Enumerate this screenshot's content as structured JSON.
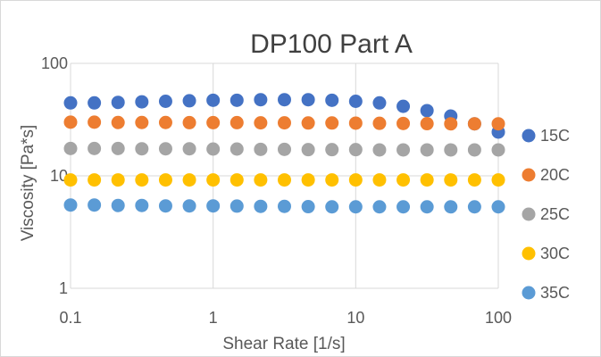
{
  "chart_data": {
    "type": "scatter",
    "title": "DP100 Part A",
    "xlabel": "Shear Rate [1/s]",
    "ylabel": "Viscosity [Pa*s]",
    "x_scale": "log",
    "y_scale": "log",
    "xlim": [
      0.1,
      100
    ],
    "ylim": [
      1,
      100
    ],
    "x_ticks": [
      "0.1",
      "1",
      "10",
      "100"
    ],
    "y_ticks": [
      "1",
      "10",
      "100"
    ],
    "grid": "major, both axes",
    "legend_position": "right",
    "x": [
      0.1,
      0.1468,
      0.2154,
      0.3162,
      0.4642,
      0.6813,
      1.0,
      1.468,
      2.154,
      3.162,
      4.642,
      6.813,
      10.0,
      14.68,
      21.54,
      31.62,
      46.42,
      68.13,
      100.0
    ],
    "series": [
      {
        "name": "15C",
        "color": "#4472c4",
        "values": [
          44.5,
          44.5,
          45,
          45.5,
          46,
          46.5,
          47,
          47,
          47.5,
          47.5,
          47.5,
          47,
          46,
          44.5,
          41.5,
          38,
          34,
          29,
          24.5
        ]
      },
      {
        "name": "20C",
        "color": "#ed7d31",
        "values": [
          30,
          30,
          29.8,
          29.8,
          29.8,
          29.7,
          29.7,
          29.7,
          29.6,
          29.6,
          29.5,
          29.5,
          29.4,
          29.3,
          29.2,
          29.1,
          29,
          29,
          29
        ]
      },
      {
        "name": "25C",
        "color": "#a5a5a5",
        "values": [
          17.5,
          17.5,
          17.5,
          17.4,
          17.4,
          17.4,
          17.3,
          17.3,
          17.2,
          17.2,
          17.1,
          17.1,
          17.1,
          17,
          17,
          17,
          17,
          17,
          17
        ]
      },
      {
        "name": "30C",
        "color": "#ffc000",
        "values": [
          9.2,
          9.2,
          9.2,
          9.2,
          9.2,
          9.2,
          9.2,
          9.2,
          9.2,
          9.2,
          9.2,
          9.2,
          9.2,
          9.2,
          9.2,
          9.2,
          9.2,
          9.2,
          9.2
        ]
      },
      {
        "name": "35C",
        "color": "#5b9bd5",
        "values": [
          5.5,
          5.5,
          5.45,
          5.45,
          5.4,
          5.4,
          5.4,
          5.38,
          5.35,
          5.35,
          5.32,
          5.3,
          5.3,
          5.3,
          5.3,
          5.3,
          5.3,
          5.3,
          5.3
        ]
      }
    ]
  }
}
